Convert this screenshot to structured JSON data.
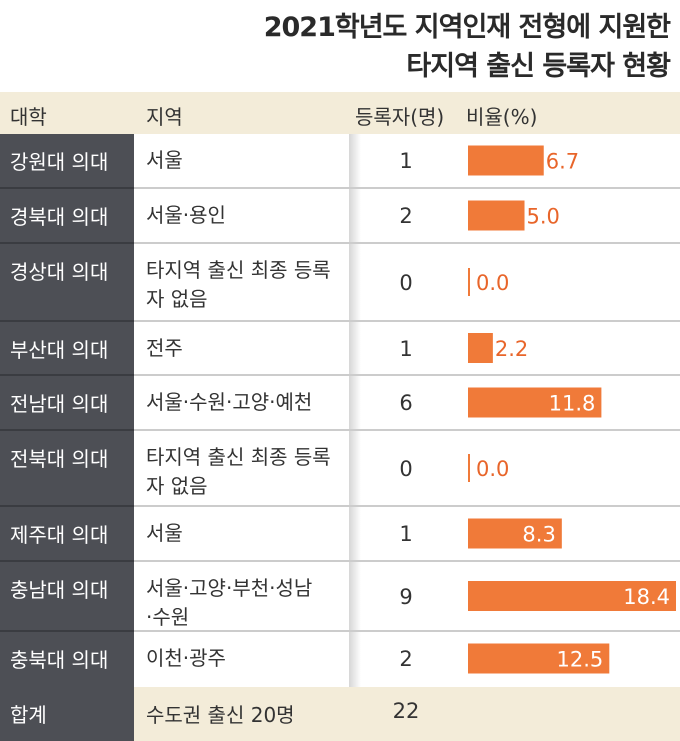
{
  "title": {
    "line1": "2021학년도 지역인재 전형에 지원한",
    "line2": "타지역 출신 등록자 현황"
  },
  "header": {
    "university": "대학",
    "region": "지역",
    "count": "등록자(명)",
    "ratio": "비율(%)"
  },
  "rows": [
    {
      "university": "강원대 의대",
      "region": "서울",
      "count": "1",
      "ratio": "6.7"
    },
    {
      "university": "경북대 의대",
      "region": "서울·용인",
      "count": "2",
      "ratio": "5.0"
    },
    {
      "university": "경상대 의대",
      "region": "타지역 출신 최종 등록자 없음",
      "count": "0",
      "ratio": "0.0"
    },
    {
      "university": "부산대 의대",
      "region": "전주",
      "count": "1",
      "ratio": "2.2"
    },
    {
      "university": "전남대 의대",
      "region": "서울·수원·고양·예천",
      "count": "6",
      "ratio": "11.8"
    },
    {
      "university": "전북대 의대",
      "region": "타지역 출신 최종 등록자 없음",
      "count": "0",
      "ratio": "0.0"
    },
    {
      "university": "제주대 의대",
      "region": "서울",
      "count": "1",
      "ratio": "8.3"
    },
    {
      "university": "충남대 의대",
      "region": "서울·고양·부천·성남·수원",
      "count": "9",
      "ratio": "18.4"
    },
    {
      "university": "충북대 의대",
      "region": "이천·광주",
      "count": "2",
      "ratio": "12.5"
    }
  ],
  "total": {
    "label": "합계",
    "region": "수도권 출신 20명",
    "count": "22"
  },
  "colors": {
    "bar": "#f07a39",
    "label_outside": "#e8652a",
    "label_inside": "#ffffff",
    "header_bg": "#f3ecd9",
    "sidebar_bg": "#4d4f55"
  },
  "chart_data": {
    "type": "bar",
    "orientation": "horizontal",
    "categories": [
      "강원대 의대",
      "경북대 의대",
      "경상대 의대",
      "부산대 의대",
      "전남대 의대",
      "전북대 의대",
      "제주대 의대",
      "충남대 의대",
      "충북대 의대"
    ],
    "values": [
      6.7,
      5.0,
      0.0,
      2.2,
      11.8,
      0.0,
      8.3,
      18.4,
      12.5
    ],
    "xlim": [
      0,
      18.4
    ],
    "grid": false
  }
}
